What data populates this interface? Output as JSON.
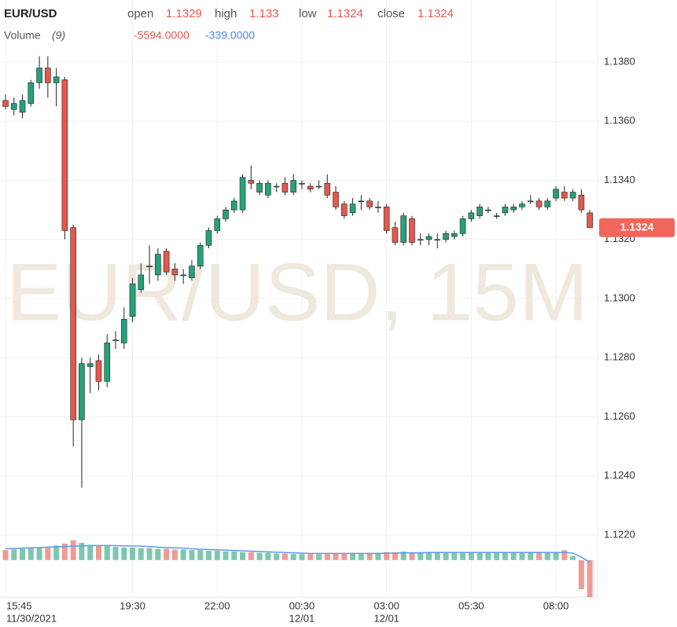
{
  "chart_data": {
    "type": "candlestick",
    "title": "EUR/USD",
    "watermark": "EUR/USD, 15M",
    "ohlc_labels": {
      "open": "open",
      "high": "high",
      "low": "low",
      "close": "close"
    },
    "up_color": "#26a17a",
    "down_color": "#e4584e",
    "categories": [
      "15:45",
      null,
      null,
      null,
      null,
      null,
      null,
      null,
      null,
      null,
      null,
      null,
      null,
      null,
      null,
      "19:30",
      null,
      null,
      null,
      null,
      null,
      null,
      null,
      null,
      null,
      "22:00",
      null,
      null,
      null,
      null,
      null,
      null,
      null,
      null,
      null,
      "00:30",
      null,
      null,
      null,
      null,
      null,
      null,
      null,
      null,
      null,
      "03:00",
      null,
      null,
      null,
      null,
      null,
      null,
      null,
      null,
      null,
      "05:30",
      null,
      null,
      null,
      null,
      null,
      null,
      null,
      null,
      null,
      "08:00",
      null,
      null,
      null,
      null
    ],
    "date_labels": [
      "11/30/2021",
      null,
      null,
      null,
      null,
      null,
      null,
      null,
      null,
      null,
      null,
      null,
      null,
      null,
      null,
      null,
      null,
      null,
      null,
      null,
      null,
      null,
      null,
      null,
      null,
      null,
      null,
      null,
      null,
      null,
      null,
      null,
      null,
      null,
      null,
      "12/01",
      null,
      null,
      null,
      null,
      null,
      null,
      null,
      null,
      null,
      "12/01",
      null,
      null,
      null,
      null,
      null,
      null,
      null,
      null,
      null,
      null,
      null,
      null,
      null,
      null,
      null,
      null,
      null,
      null,
      null,
      null,
      null,
      null,
      null,
      null
    ],
    "open": [
      1.1367,
      1.1364,
      1.1363,
      1.1366,
      1.1373,
      1.1378,
      1.1373,
      1.1374,
      1.1324,
      1.1259,
      1.1277,
      1.1279,
      1.1272,
      1.1286,
      1.1285,
      1.1294,
      1.1303,
      1.1311,
      1.1308,
      1.1316,
      1.131,
      1.1308,
      1.1307,
      1.1311,
      1.1318,
      1.1323,
      1.1327,
      1.133,
      1.133,
      1.134,
      1.1336,
      1.1335,
      1.1338,
      1.1339,
      1.1336,
      1.1339,
      1.1338,
      1.1338,
      1.1339,
      1.1336,
      1.1332,
      1.1329,
      1.1333,
      1.1333,
      1.1331,
      1.1331,
      1.1324,
      1.1319,
      1.1327,
      1.132,
      1.132,
      1.132,
      1.132,
      1.1321,
      1.1322,
      1.1327,
      1.1328,
      1.133,
      1.1328,
      1.1329,
      1.133,
      1.1331,
      1.1333,
      1.1333,
      1.1331,
      1.1334,
      1.1336,
      1.1334,
      1.1335,
      1.1329
    ],
    "high": [
      1.1369,
      1.1368,
      1.1369,
      1.1374,
      1.1382,
      1.1382,
      1.1378,
      1.1375,
      1.1325,
      1.128,
      1.128,
      1.1281,
      1.1288,
      1.1289,
      1.1297,
      1.1307,
      1.1312,
      1.1318,
      1.1317,
      1.1317,
      1.1312,
      1.131,
      1.1313,
      1.1319,
      1.1324,
      1.1328,
      1.1331,
      1.1334,
      1.1342,
      1.1345,
      1.134,
      1.134,
      1.1339,
      1.1341,
      1.1342,
      1.134,
      1.1339,
      1.134,
      1.1342,
      1.1338,
      1.1333,
      1.1334,
      1.1335,
      1.1334,
      1.1333,
      1.1332,
      1.1326,
      1.1329,
      1.1328,
      1.1322,
      1.1322,
      1.1322,
      1.1323,
      1.1323,
      1.1328,
      1.133,
      1.1332,
      1.1331,
      1.1329,
      1.1332,
      1.1332,
      1.1333,
      1.1335,
      1.1334,
      1.1334,
      1.1338,
      1.1338,
      1.1337,
      1.1337,
      1.133
    ],
    "low": [
      1.1364,
      1.1362,
      1.1361,
      1.1365,
      1.1371,
      1.1368,
      1.1365,
      1.132,
      1.125,
      1.1236,
      1.1268,
      1.1269,
      1.127,
      1.1283,
      1.1283,
      1.1292,
      1.1302,
      1.1305,
      1.1306,
      1.1308,
      1.1306,
      1.1305,
      1.1306,
      1.131,
      1.1317,
      1.1322,
      1.1326,
      1.1329,
      1.1329,
      1.1337,
      1.1335,
      1.1334,
      1.1336,
      1.1335,
      1.1335,
      1.1337,
      1.1336,
      1.1337,
      1.1334,
      1.133,
      1.1327,
      1.1328,
      1.133,
      1.133,
      1.1329,
      1.1322,
      1.1318,
      1.1318,
      1.1318,
      1.1318,
      1.1318,
      1.1317,
      1.1319,
      1.132,
      1.1321,
      1.1326,
      1.1327,
      1.1329,
      1.1327,
      1.1328,
      1.1329,
      1.133,
      1.1332,
      1.133,
      1.133,
      1.1333,
      1.1333,
      1.1333,
      1.1329,
      1.1324
    ],
    "close": [
      1.1365,
      1.1366,
      1.1367,
      1.1373,
      1.1378,
      1.1373,
      1.1375,
      1.1323,
      1.1259,
      1.1278,
      1.1278,
      1.1272,
      1.1285,
      1.1286,
      1.1293,
      1.1305,
      1.1308,
      1.1311,
      1.1315,
      1.1309,
      1.1308,
      1.1308,
      1.1311,
      1.1318,
      1.1323,
      1.1327,
      1.133,
      1.1333,
      1.1341,
      1.1339,
      1.1339,
      1.1339,
      1.1338,
      1.1336,
      1.134,
      1.1339,
      1.1337,
      1.1338,
      1.1335,
      1.1331,
      1.1328,
      1.1332,
      1.1333,
      1.1331,
      1.1331,
      1.1323,
      1.1319,
      1.1328,
      1.1319,
      1.132,
      1.1321,
      1.132,
      1.1322,
      1.1322,
      1.1327,
      1.1329,
      1.1331,
      1.133,
      1.1328,
      1.1331,
      1.1331,
      1.1332,
      1.1333,
      1.1331,
      1.1333,
      1.1337,
      1.1334,
      1.1336,
      1.133,
      1.1324
    ],
    "ylim": [
      1.1199,
      1.1401
    ],
    "yticks": [
      {
        "value": 1.122,
        "label": "1.1220"
      },
      {
        "value": 1.124,
        "label": "1.1240"
      },
      {
        "value": 1.126,
        "label": "1.1260"
      },
      {
        "value": 1.128,
        "label": "1.1280"
      },
      {
        "value": 1.13,
        "label": "1.1300"
      },
      {
        "value": 1.132,
        "label": "1.1320"
      },
      {
        "value": 1.134,
        "label": "1.1340"
      },
      {
        "value": 1.136,
        "label": "1.1360"
      },
      {
        "value": 1.138,
        "label": "1.1380"
      }
    ],
    "grid": true,
    "volume": {
      "name": "Volume",
      "period_label": "(9)",
      "last_label": "-5594.0000",
      "vlim": [
        -5600,
        13400
      ],
      "values": [
        1500,
        1600,
        1700,
        1800,
        1900,
        2000,
        2200,
        2500,
        3000,
        2600,
        2300,
        2200,
        2100,
        2000,
        1900,
        1900,
        1800,
        1800,
        1700,
        1700,
        1600,
        1600,
        1500,
        1500,
        1400,
        1400,
        1300,
        1300,
        1200,
        1200,
        1100,
        1100,
        1000,
        1000,
        900,
        900,
        900,
        900,
        900,
        1000,
        1000,
        1000,
        1000,
        1100,
        1100,
        1200,
        1200,
        1300,
        1200,
        1200,
        1100,
        1100,
        1100,
        1100,
        1100,
        1200,
        1200,
        1100,
        1100,
        1100,
        1200,
        1200,
        1200,
        1200,
        1200,
        1200,
        1500,
        600,
        -4400,
        -5594
      ],
      "ma": {
        "color": "#5b9bea",
        "last_label": "-339.0000",
        "values": [
          1700,
          1750,
          1800,
          1850,
          1900,
          1950,
          2000,
          2050,
          2100,
          2150,
          2200,
          2200,
          2200,
          2200,
          2150,
          2150,
          2100,
          2050,
          1950,
          1900,
          1850,
          1800,
          1700,
          1650,
          1600,
          1550,
          1500,
          1450,
          1400,
          1350,
          1300,
          1250,
          1200,
          1150,
          1100,
          1050,
          1000,
          1000,
          1000,
          1000,
          1000,
          1000,
          1000,
          1000,
          1000,
          1050,
          1050,
          1100,
          1100,
          1100,
          1150,
          1150,
          1150,
          1150,
          1150,
          1150,
          1150,
          1150,
          1150,
          1150,
          1150,
          1150,
          1150,
          1150,
          1150,
          1150,
          1150,
          1050,
          450,
          -339
        ]
      }
    }
  }
}
